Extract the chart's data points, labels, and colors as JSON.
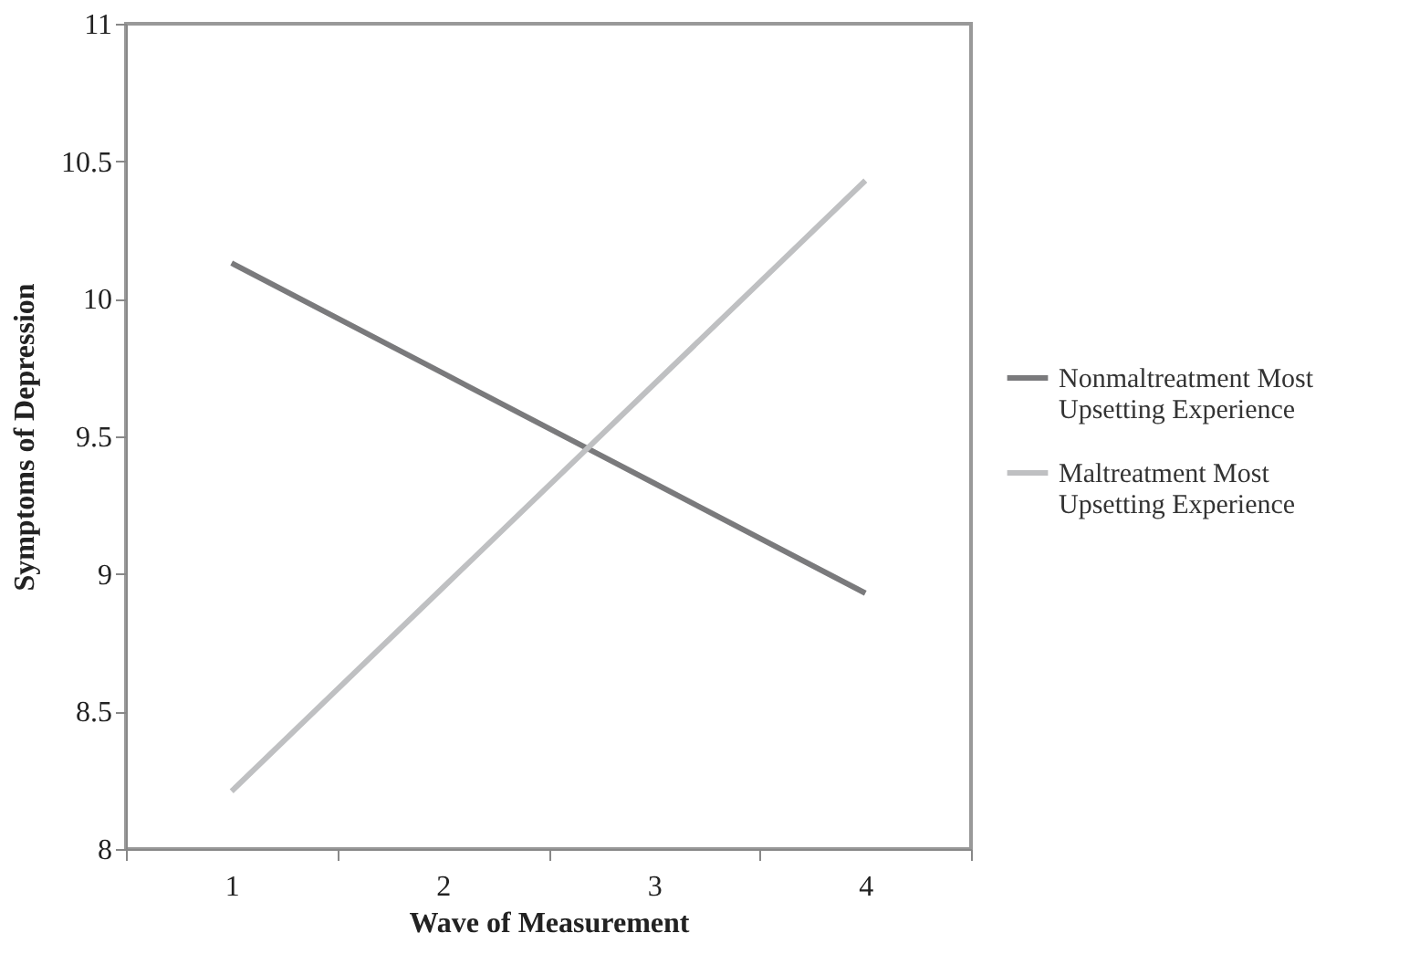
{
  "chart_data": {
    "type": "line",
    "xlabel": "Wave of Measurement",
    "ylabel": "Symptoms of Depression",
    "categories": [
      "1",
      "2",
      "3",
      "4"
    ],
    "ylim": [
      8,
      11
    ],
    "yticks": [
      8,
      8.5,
      9,
      9.5,
      10,
      10.5,
      11
    ],
    "grid": false,
    "legend": "right",
    "marker": "none",
    "line_style": "solid",
    "series": [
      {
        "name": "Nonmaltreatment Most Upsetting Experience",
        "color": "#7a7a7c",
        "values": [
          10.13,
          9.73,
          9.33,
          8.93
        ]
      },
      {
        "name": "Maltreatment Most Upsetting Experience",
        "color": "#bfc0c2",
        "values": [
          8.21,
          8.95,
          9.69,
          10.43
        ]
      }
    ]
  }
}
